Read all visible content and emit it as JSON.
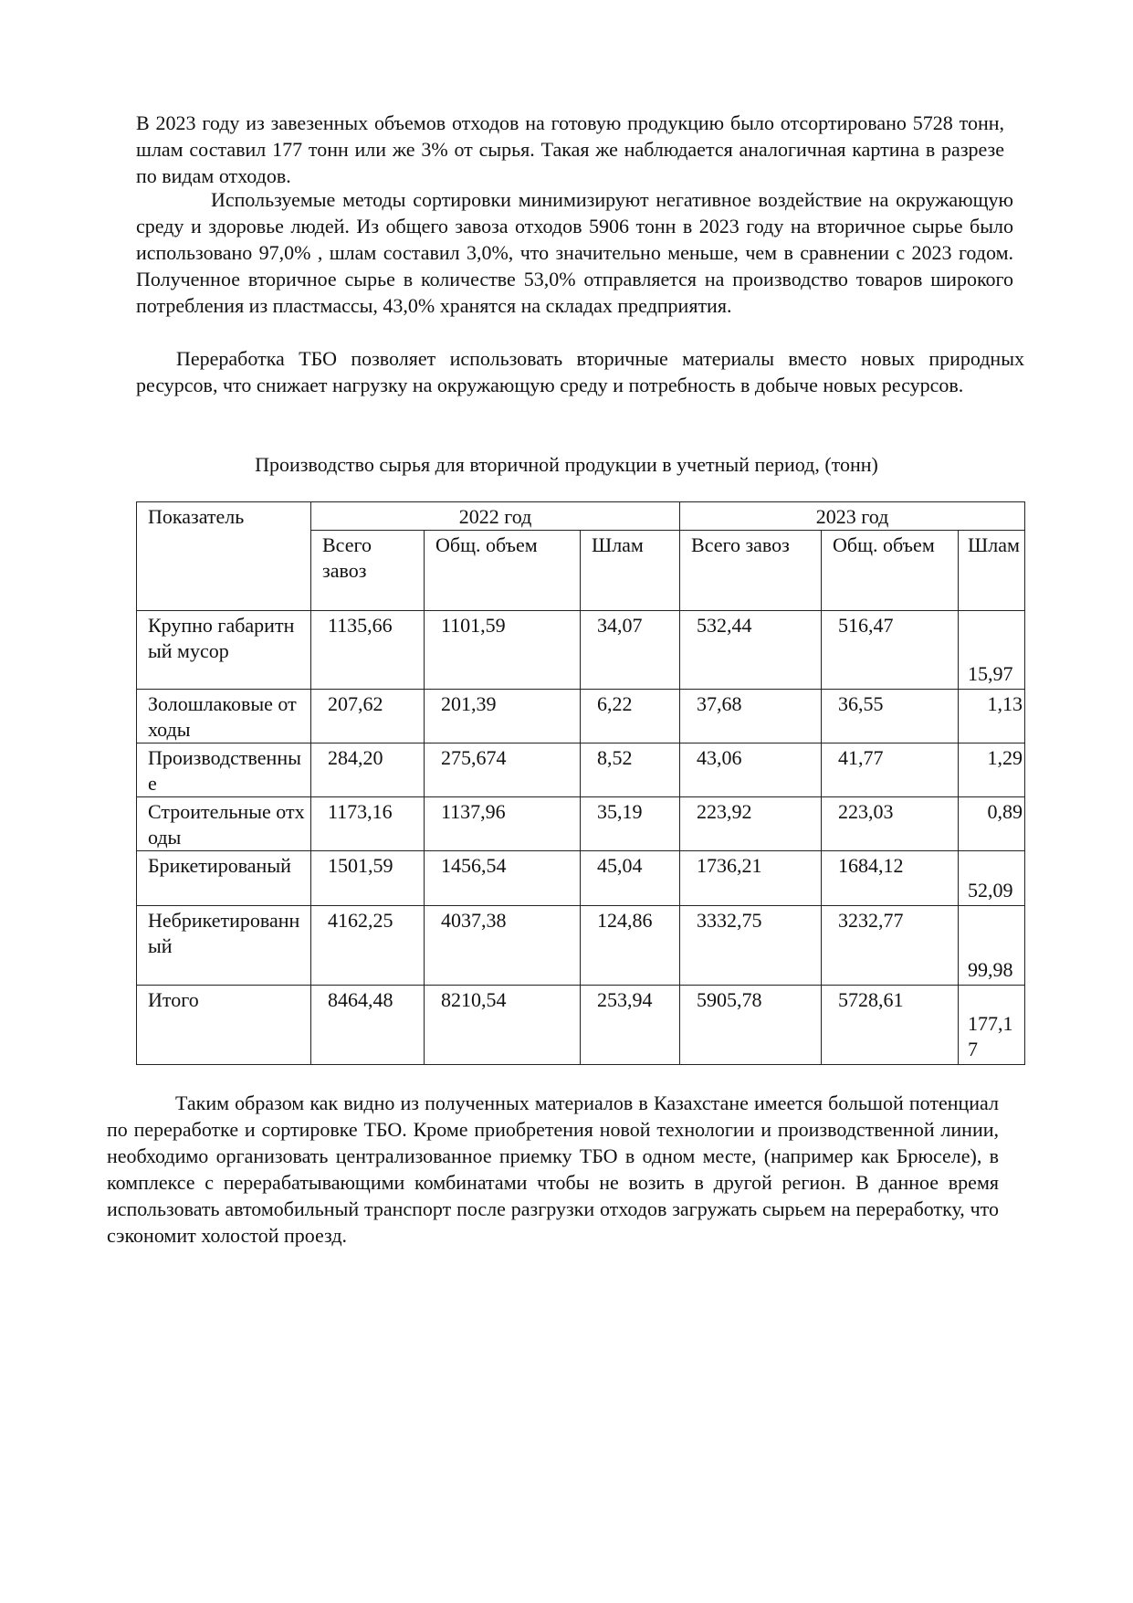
{
  "paragraphs": [
    "В 2023 году из завезенных объемов отходов на готовую продукцию было отсортировано 5728 тонн, шлам составил 177 тонн или же 3% от сырья. Такая же наблюдается аналогичная картина в разрезе по видам отходов.",
    "Используемые методы сортировки минимизируют негативное воздействие на окружающую среду и здоровье людей. Из общего завоза отходов 5906 тонн в 2023 году на вторичное сырье было использовано 97,0% , шлам составил 3,0%, что значительно меньше, чем в сравнении с 2023 годом. Полученное вторичное сырье в количестве 53,0% отправляется на производство товаров широкого потребления из пластмассы, 43,0% хранятся на складах предприятия.",
    "Переработка ТБО позволяет использовать вторичные материалы вместо новых природных ресурсов, что снижает нагрузку на окружающую среду и потребность в добыче новых ресурсов.",
    "Таким образом как видно из полученных материалов  в Казахстане имеется большой потенциал по переработке и сортировке ТБО. Кроме приобретения новой технологии и производственной линии, необходимо организовать централизованное приемку ТБО в одном месте, (например как Брюселе), в комплексе с перерабатывающими комбинатами чтобы не возить в другой регион. В данное время использовать автомобильный транспорт после разгрузки отходов загружать сырьем на переработку, что сэкономит холостой проезд."
  ],
  "table": {
    "caption": "Производство сырья для вторичной продукции в учетный период, (тонн)",
    "header": {
      "indicator": "Показатель",
      "year1": "2022 год",
      "year2": "2023 год",
      "cols": [
        "Всего завоз",
        "Общ. объем",
        "Шлам",
        "Всего завоз",
        "Общ. объем",
        "Шлам"
      ]
    },
    "rows": [
      {
        "name": "Крупно габаритный мусор",
        "values": [
          "1135,66",
          "1101,59",
          "34,07",
          "532,44",
          "516,47",
          "15,97"
        ]
      },
      {
        "name": "Золошлаковые отходы",
        "values": [
          "207,62",
          "201,39",
          "6,22",
          "37,68",
          "36,55",
          "1,13"
        ]
      },
      {
        "name": "Производственные",
        "values": [
          "284,20",
          "275,674",
          "8,52",
          "43,06",
          "41,77",
          "1,29"
        ]
      },
      {
        "name": "Строительные отходы",
        "values": [
          "1173,16",
          "1137,96",
          "35,19",
          "223,92",
          "223,03",
          "0,89"
        ]
      },
      {
        "name": "Брикетированый",
        "values": [
          "1501,59",
          "1456,54",
          "45,04",
          "1736,21",
          "1684,12",
          "52,09"
        ]
      },
      {
        "name": "Небрикетированный",
        "values": [
          "4162,25",
          "4037,38",
          "124,86",
          "3332,75",
          "3232,77",
          "99,98"
        ]
      },
      {
        "name": "Итого",
        "values": [
          "8464,48",
          "8210,54",
          "253,94",
          "5905,78",
          "5728,61",
          "177,17"
        ]
      }
    ]
  }
}
